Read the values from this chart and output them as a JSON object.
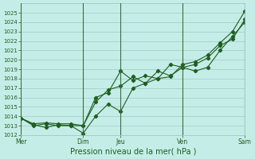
{
  "xlabel": "Pression niveau de la mer( hPa )",
  "bg_color": "#c5ede8",
  "grid_color": "#9abfbb",
  "line_color": "#1e5e1e",
  "vline_color": "#3a6e3a",
  "ylim": [
    1012,
    1026
  ],
  "yticks": [
    1012,
    1013,
    1014,
    1015,
    1016,
    1017,
    1018,
    1019,
    1020,
    1021,
    1022,
    1023,
    1024,
    1025
  ],
  "xtick_labels": [
    "Mer",
    "Dim",
    "Jeu",
    "Ven",
    "Sam"
  ],
  "xtick_positions": [
    0,
    5,
    8,
    13,
    18
  ],
  "vline_positions": [
    0,
    5,
    8,
    13,
    18
  ],
  "series": [
    {
      "x": [
        0,
        1,
        2,
        3,
        4,
        5,
        6,
        7,
        8,
        9,
        10,
        11,
        12,
        13,
        14,
        15,
        16,
        17,
        18
      ],
      "y": [
        1013.8,
        1013.1,
        1012.8,
        1013.1,
        1013.0,
        1012.2,
        1014.0,
        1015.3,
        1014.5,
        1017.0,
        1017.5,
        1018.8,
        1018.3,
        1019.2,
        1018.8,
        1019.2,
        1021.0,
        1022.5,
        1024.0
      ]
    },
    {
      "x": [
        0,
        1,
        2,
        3,
        4,
        5,
        6,
        7,
        8,
        9,
        10,
        11,
        12,
        13,
        14,
        15,
        16,
        17,
        18
      ],
      "y": [
        1013.8,
        1013.0,
        1013.2,
        1013.0,
        1013.0,
        1013.0,
        1016.0,
        1016.5,
        1018.8,
        1017.8,
        1018.3,
        1018.0,
        1019.5,
        1019.2,
        1019.5,
        1020.2,
        1021.5,
        1022.2,
        1024.3
      ]
    },
    {
      "x": [
        0,
        1,
        2,
        3,
        4,
        5,
        6,
        7,
        8,
        9,
        10,
        11,
        12,
        13,
        14,
        15,
        16,
        17,
        18
      ],
      "y": [
        1013.8,
        1013.2,
        1013.3,
        1013.2,
        1013.2,
        1013.0,
        1015.5,
        1016.8,
        1017.2,
        1018.2,
        1017.5,
        1018.0,
        1018.2,
        1019.5,
        1019.8,
        1020.5,
        1021.8,
        1023.0,
        1025.2
      ]
    }
  ]
}
